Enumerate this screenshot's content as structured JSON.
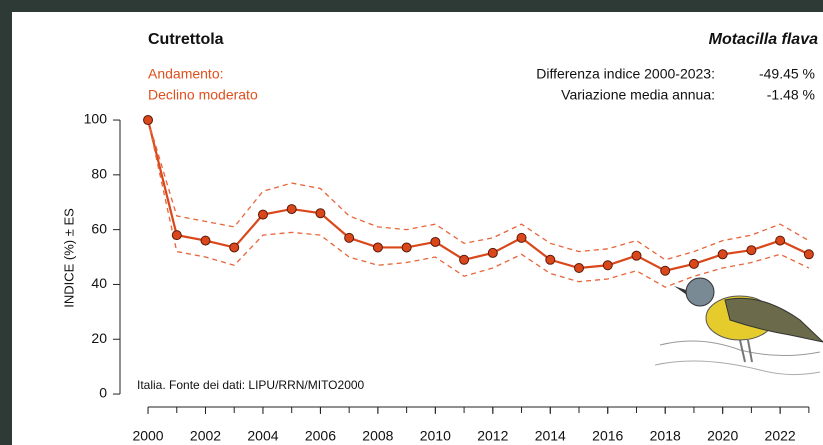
{
  "chart_data": {
    "type": "line",
    "title": "Cutrettola",
    "subtitle": "Motacilla flava",
    "trend_label": "Andamento:",
    "trend_value": "Declino moderato",
    "stats": [
      {
        "label": "Differenza indice 2000-2023:",
        "value": "-49.45 %"
      },
      {
        "label": "Variazione media annua:",
        "value": "-1.48 %"
      }
    ],
    "source_note": "Italia. Fonte dei dati: LIPU/RRN/MITO2000",
    "y_label": "INDICE (%) ± ES",
    "x": [
      2000,
      2001,
      2002,
      2003,
      2004,
      2005,
      2006,
      2007,
      2008,
      2009,
      2010,
      2011,
      2012,
      2013,
      2014,
      2015,
      2016,
      2017,
      2018,
      2019,
      2020,
      2021,
      2022,
      2023
    ],
    "series": [
      {
        "color": "#d9471b",
        "style": "solid",
        "markers": true,
        "values": [
          100,
          58,
          56,
          53.5,
          65.5,
          67.5,
          66,
          57,
          53.5,
          53.5,
          55.5,
          49,
          51.5,
          57,
          49,
          46,
          47,
          50.5,
          45,
          47.5,
          51,
          52.5,
          56,
          51
        ]
      },
      {
        "color": "#e8643a",
        "style": "dashed",
        "markers": false,
        "values": [
          100,
          65,
          63,
          61,
          74,
          77,
          75,
          65,
          61,
          60,
          62,
          55,
          57,
          62,
          55,
          52,
          53,
          56,
          49,
          52,
          56,
          58,
          62,
          56
        ]
      },
      {
        "color": "#e8643a",
        "style": "dashed",
        "markers": false,
        "values": [
          100,
          52,
          50,
          47,
          58,
          59,
          58,
          50,
          47,
          48,
          50,
          43,
          46,
          51,
          44,
          41,
          42,
          45,
          39,
          43,
          46,
          48,
          51,
          46
        ]
      }
    ],
    "xlim": [
      1999,
      2024
    ],
    "ylim": [
      -4,
      106
    ],
    "xticks": [
      2000,
      2002,
      2004,
      2006,
      2008,
      2010,
      2012,
      2014,
      2016,
      2018,
      2020,
      2022
    ],
    "yticks": [
      0,
      20,
      40,
      60,
      80,
      100
    ]
  }
}
